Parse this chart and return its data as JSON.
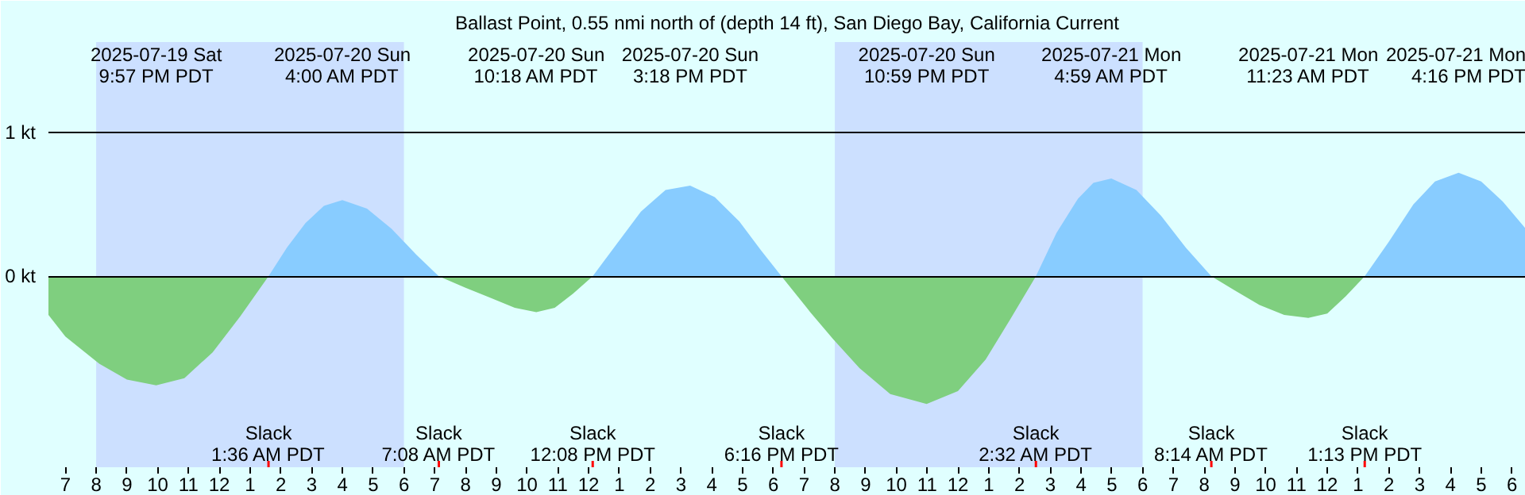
{
  "chart_data": {
    "type": "area",
    "title": "Ballast Point, 0.55 nmi north of (depth 14 ft), San Diego Bay, California Current",
    "xlim": [
      "2025-07-19T18:27",
      "2025-07-21T18:27"
    ],
    "ylim": [
      -1.33,
      1.63
    ],
    "yticks": [
      {
        "value": 1,
        "label": "1 kt"
      },
      {
        "value": 0,
        "label": "0 kt"
      }
    ],
    "xticks": [
      {
        "value": "2025-07-19T19:00",
        "label": "7"
      },
      {
        "value": "2025-07-19T20:00",
        "label": "8"
      },
      {
        "value": "2025-07-19T21:00",
        "label": "9"
      },
      {
        "value": "2025-07-19T22:00",
        "label": "10"
      },
      {
        "value": "2025-07-19T23:00",
        "label": "11"
      },
      {
        "value": "2025-07-20T00:00",
        "label": "12"
      },
      {
        "value": "2025-07-20T01:00",
        "label": "1"
      },
      {
        "value": "2025-07-20T02:00",
        "label": "2"
      },
      {
        "value": "2025-07-20T03:00",
        "label": "3"
      },
      {
        "value": "2025-07-20T04:00",
        "label": "4"
      },
      {
        "value": "2025-07-20T05:00",
        "label": "5"
      },
      {
        "value": "2025-07-20T06:00",
        "label": "6"
      },
      {
        "value": "2025-07-20T07:00",
        "label": "7"
      },
      {
        "value": "2025-07-20T08:00",
        "label": "8"
      },
      {
        "value": "2025-07-20T09:00",
        "label": "9"
      },
      {
        "value": "2025-07-20T10:00",
        "label": "10"
      },
      {
        "value": "2025-07-20T11:00",
        "label": "11"
      },
      {
        "value": "2025-07-20T12:00",
        "label": "12"
      },
      {
        "value": "2025-07-20T13:00",
        "label": "1"
      },
      {
        "value": "2025-07-20T14:00",
        "label": "2"
      },
      {
        "value": "2025-07-20T15:00",
        "label": "3"
      },
      {
        "value": "2025-07-20T16:00",
        "label": "4"
      },
      {
        "value": "2025-07-20T17:00",
        "label": "5"
      },
      {
        "value": "2025-07-20T18:00",
        "label": "6"
      },
      {
        "value": "2025-07-20T19:00",
        "label": "7"
      },
      {
        "value": "2025-07-20T20:00",
        "label": "8"
      },
      {
        "value": "2025-07-20T21:00",
        "label": "9"
      },
      {
        "value": "2025-07-20T22:00",
        "label": "10"
      },
      {
        "value": "2025-07-20T23:00",
        "label": "11"
      },
      {
        "value": "2025-07-21T00:00",
        "label": "12"
      },
      {
        "value": "2025-07-21T01:00",
        "label": "1"
      },
      {
        "value": "2025-07-21T02:00",
        "label": "2"
      },
      {
        "value": "2025-07-21T03:00",
        "label": "3"
      },
      {
        "value": "2025-07-21T04:00",
        "label": "4"
      },
      {
        "value": "2025-07-21T05:00",
        "label": "5"
      },
      {
        "value": "2025-07-21T06:00",
        "label": "6"
      },
      {
        "value": "2025-07-21T07:00",
        "label": "7"
      },
      {
        "value": "2025-07-21T08:00",
        "label": "8"
      },
      {
        "value": "2025-07-21T09:00",
        "label": "9"
      },
      {
        "value": "2025-07-21T10:00",
        "label": "10"
      },
      {
        "value": "2025-07-21T11:00",
        "label": "11"
      },
      {
        "value": "2025-07-21T12:00",
        "label": "12"
      },
      {
        "value": "2025-07-21T13:00",
        "label": "1"
      },
      {
        "value": "2025-07-21T14:00",
        "label": "2"
      },
      {
        "value": "2025-07-21T15:00",
        "label": "3"
      },
      {
        "value": "2025-07-21T16:00",
        "label": "4"
      },
      {
        "value": "2025-07-21T17:00",
        "label": "5"
      },
      {
        "value": "2025-07-21T18:00",
        "label": "6"
      }
    ],
    "grid": "y",
    "series": [
      {
        "color": "#7fcf7f",
        "x": [
          "2025-07-19T18:27",
          "2025-07-19T19:00",
          "2025-07-19T20:06",
          "2025-07-19T21:00",
          "2025-07-19T21:57",
          "2025-07-19T22:52",
          "2025-07-19T23:47",
          "2025-07-20T00:41",
          "2025-07-20T01:36",
          "2025-07-20T07:08",
          "2025-07-20T08:00",
          "2025-07-20T08:48",
          "2025-07-20T09:36",
          "2025-07-20T10:18",
          "2025-07-20T10:54",
          "2025-07-20T11:30",
          "2025-07-20T12:08",
          "2025-07-20T18:16",
          "2025-07-20T19:12",
          "2025-07-20T19:57",
          "2025-07-20T20:48",
          "2025-07-20T21:48",
          "2025-07-20T22:59",
          "2025-07-21T00:00",
          "2025-07-21T00:54",
          "2025-07-21T01:42",
          "2025-07-21T02:32",
          "2025-07-21T08:14",
          "2025-07-21T09:00",
          "2025-07-21T09:48",
          "2025-07-21T10:36",
          "2025-07-21T11:23",
          "2025-07-21T12:00",
          "2025-07-21T12:36",
          "2025-07-21T13:13"
        ],
        "values": [
          -0.27,
          -0.42,
          -0.61,
          -0.72,
          -0.76,
          -0.71,
          -0.53,
          -0.28,
          0,
          0,
          -0.08,
          -0.15,
          -0.22,
          -0.25,
          -0.22,
          -0.12,
          0,
          0,
          -0.25,
          -0.44,
          -0.64,
          -0.82,
          -0.89,
          -0.8,
          -0.58,
          -0.3,
          0,
          0,
          -0.1,
          -0.2,
          -0.27,
          -0.29,
          -0.26,
          -0.14,
          0
        ]
      },
      {
        "color": "#88ccff",
        "x": [
          "2025-07-20T01:36",
          "2025-07-20T02:12",
          "2025-07-20T02:48",
          "2025-07-20T03:24",
          "2025-07-20T04:00",
          "2025-07-20T04:48",
          "2025-07-20T05:36",
          "2025-07-20T06:24",
          "2025-07-20T07:08",
          "2025-07-20T12:08",
          "2025-07-20T12:54",
          "2025-07-20T13:42",
          "2025-07-20T14:30",
          "2025-07-20T15:18",
          "2025-07-20T16:06",
          "2025-07-20T16:54",
          "2025-07-20T17:36",
          "2025-07-20T18:16",
          "2025-07-21T02:32",
          "2025-07-21T03:12",
          "2025-07-21T03:54",
          "2025-07-21T04:24",
          "2025-07-21T04:59",
          "2025-07-21T05:48",
          "2025-07-21T06:36",
          "2025-07-21T07:24",
          "2025-07-21T08:14",
          "2025-07-21T13:13",
          "2025-07-21T14:00",
          "2025-07-21T14:48",
          "2025-07-21T15:30",
          "2025-07-21T16:16",
          "2025-07-21T17:00",
          "2025-07-21T17:42",
          "2025-07-21T18:27"
        ],
        "values": [
          0,
          0.2,
          0.37,
          0.49,
          0.53,
          0.47,
          0.33,
          0.15,
          0,
          0,
          0.22,
          0.45,
          0.6,
          0.63,
          0.55,
          0.38,
          0.18,
          0,
          0,
          0.3,
          0.54,
          0.65,
          0.68,
          0.6,
          0.42,
          0.2,
          0,
          0,
          0.24,
          0.5,
          0.66,
          0.72,
          0.66,
          0.52,
          0.33
        ]
      }
    ],
    "bands": [
      {
        "axis": "x",
        "from": "2025-07-19T20:00",
        "to": "2025-07-20T06:00",
        "color": "#cce0ff"
      },
      {
        "axis": "x",
        "from": "2025-07-20T20:00",
        "to": "2025-07-21T06:00",
        "color": "#cce0ff"
      }
    ],
    "annotations": [
      "2025-07-19 Sat\n9:57 PM PDT",
      "2025-07-20 Sun\n4:00 AM PDT",
      "2025-07-20 Sun\n10:18 AM PDT",
      "2025-07-20 Sun\n3:18 PM PDT",
      "2025-07-20 Sun\n10:59 PM PDT",
      "2025-07-21 Mon\n4:59 AM PDT",
      "2025-07-21 Mon\n11:23 AM PDT",
      "2025-07-21 Mon\n4:16 PM PDT",
      "Slack\n1:36 AM PDT",
      "Slack\n7:08 AM PDT",
      "Slack\n12:08 PM PDT",
      "Slack\n6:16 PM PDT",
      "Slack\n2:32 AM PDT",
      "Slack\n8:14 AM PDT",
      "Slack\n1:13 PM PDT"
    ]
  }
}
